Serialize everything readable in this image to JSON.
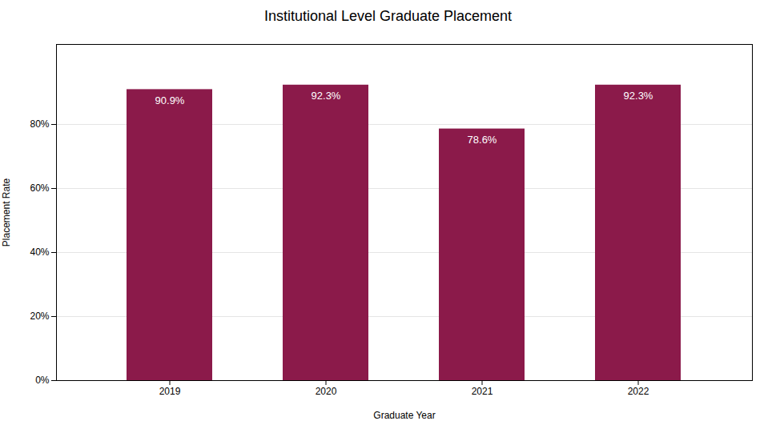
{
  "chart_data": {
    "type": "bar",
    "title": "Institutional Level Graduate Placement",
    "xlabel": "Graduate Year",
    "ylabel": "Placement Rate",
    "categories": [
      "2019",
      "2020",
      "2021",
      "2022"
    ],
    "values": [
      90.9,
      92.3,
      78.6,
      92.3
    ],
    "value_labels": [
      "90.9%",
      "92.3%",
      "78.6%",
      "92.3%"
    ],
    "data_labels": true,
    "color": "#8B1A4A",
    "ylim": [
      0,
      105
    ],
    "yticks": [
      {
        "value": 0,
        "label": "0%"
      },
      {
        "value": 20,
        "label": "20%"
      },
      {
        "value": 40,
        "label": "40%"
      },
      {
        "value": 60,
        "label": "60%"
      },
      {
        "value": 80,
        "label": "80%"
      }
    ],
    "grid": true
  }
}
